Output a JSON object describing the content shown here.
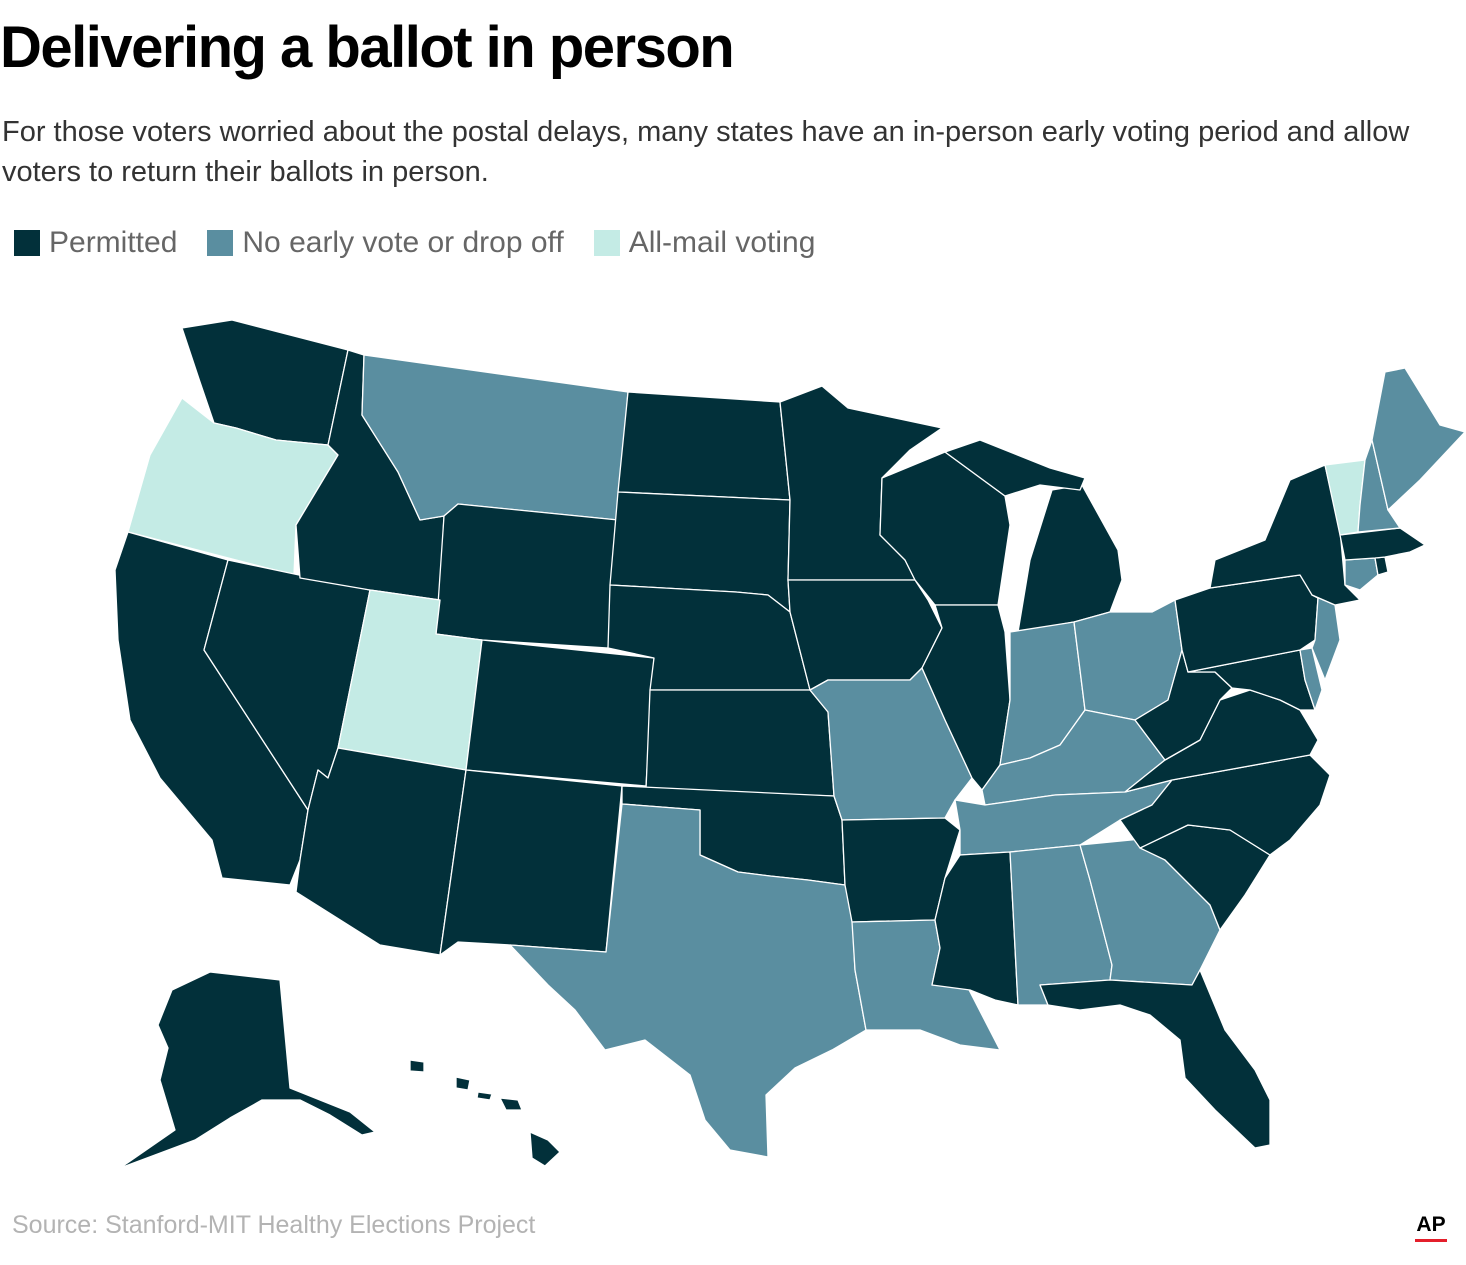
{
  "title": "Delivering a ballot in person",
  "subtitle": "For those voters worried about the postal delays, many states have an in-person early voting period and allow voters to return their ballots in person.",
  "legend": [
    {
      "label": "Permitted",
      "color": "#02303a"
    },
    {
      "label": "No early vote or drop off",
      "color": "#5a8ea0"
    },
    {
      "label": "All-mail voting",
      "color": "#c4ebe5"
    }
  ],
  "colors": {
    "permitted": "#02303a",
    "no_early_vote": "#5a8ea0",
    "all_mail": "#c4ebe5",
    "ap_red": "#e41f2b"
  },
  "states": {
    "WA": "permitted",
    "OR": "all_mail",
    "CA": "permitted",
    "NV": "permitted",
    "ID": "permitted",
    "MT": "no_early_vote",
    "WY": "permitted",
    "UT": "all_mail",
    "AZ": "permitted",
    "CO": "permitted",
    "NM": "permitted",
    "ND": "permitted",
    "SD": "permitted",
    "NE": "permitted",
    "KS": "permitted",
    "OK": "permitted",
    "TX": "no_early_vote",
    "MN": "permitted",
    "IA": "permitted",
    "MO": "no_early_vote",
    "AR": "permitted",
    "LA": "no_early_vote",
    "WI": "permitted",
    "IL": "permitted",
    "MI": "permitted",
    "IN": "no_early_vote",
    "OH": "no_early_vote",
    "KY": "no_early_vote",
    "TN": "no_early_vote",
    "MS": "permitted",
    "AL": "no_early_vote",
    "GA": "no_early_vote",
    "FL": "permitted",
    "SC": "permitted",
    "NC": "permitted",
    "VA": "permitted",
    "WV": "permitted",
    "MD": "permitted",
    "DE": "no_early_vote",
    "PA": "permitted",
    "NJ": "no_early_vote",
    "NY": "permitted",
    "CT": "no_early_vote",
    "RI": "permitted",
    "MA": "permitted",
    "VT": "all_mail",
    "NH": "no_early_vote",
    "ME": "no_early_vote",
    "AK": "permitted",
    "HI": "permitted"
  },
  "source": "Source: Stanford-MIT Healthy Elections Project",
  "logo": "AP"
}
